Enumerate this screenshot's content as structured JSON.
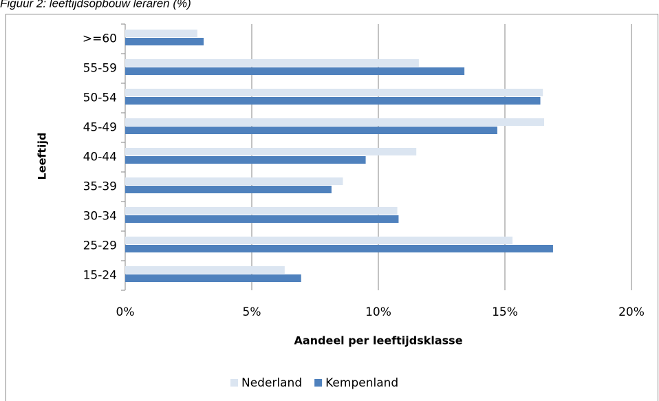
{
  "chart_data": {
    "type": "bar",
    "orientation": "horizontal",
    "title": "Figuur 2: leeftijdsopbouw leraren (%)",
    "x_label": "Aandeel per leeftijdsklasse",
    "y_label": "Leeftijd",
    "categories": [
      ">=60",
      "55-59",
      "50-54",
      "45-49",
      "40-44",
      "35-39",
      "30-34",
      "25-29",
      "15-24"
    ],
    "series": [
      {
        "name": "Nederland",
        "color": "#dbe5f1",
        "values": [
          2.85,
          11.6,
          16.5,
          16.55,
          11.5,
          8.6,
          10.75,
          15.3,
          6.3
        ]
      },
      {
        "name": "Kempenland",
        "color": "#4f81bd",
        "values": [
          3.1,
          13.4,
          16.4,
          14.7,
          9.5,
          8.15,
          10.8,
          16.9,
          6.95
        ]
      }
    ],
    "xlim": [
      0,
      20
    ],
    "xticks": [
      {
        "value": 0,
        "label": "0%"
      },
      {
        "value": 5,
        "label": "5%"
      },
      {
        "value": 10,
        "label": "10%"
      },
      {
        "value": 15,
        "label": "15%"
      },
      {
        "value": 20,
        "label": "20%"
      }
    ],
    "grid": true,
    "legend": "bottom"
  }
}
